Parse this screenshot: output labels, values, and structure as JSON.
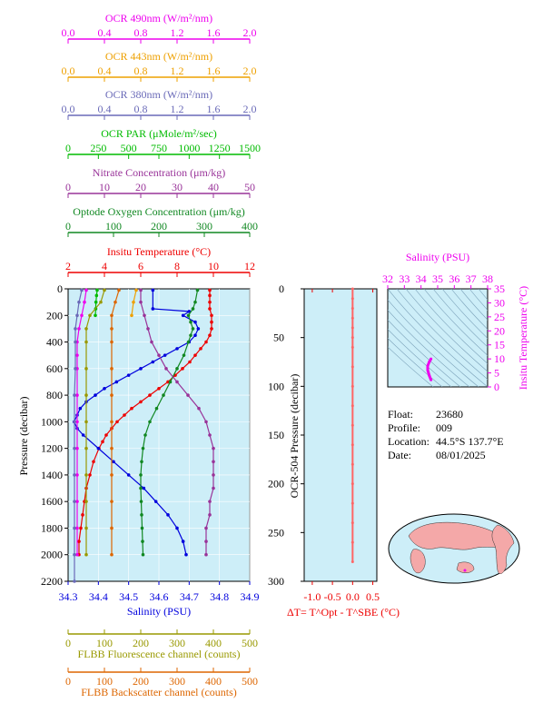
{
  "colors": {
    "ocr490": "#ee00ee",
    "ocr443": "#eea000",
    "ocr380": "#6a6ab8",
    "par": "#00bb00",
    "nitrate": "#993399",
    "oxygen": "#118822",
    "temperature": "#ee0000",
    "salinity": "#0000dd",
    "fluorescence": "#999900",
    "backscatter": "#dd6600",
    "ocr504": "#ff6666",
    "panel_bg": "#cdeef8",
    "map_land": "#f4a8a8"
  },
  "top_axes": [
    {
      "key": "ocr490",
      "label": "OCR 490nm (W/m²/nm)",
      "ticks": [
        "0.0",
        "0.4",
        "0.8",
        "1.2",
        "1.6",
        "2.0"
      ]
    },
    {
      "key": "ocr443",
      "label": "OCR 443nm (W/m²/nm)",
      "ticks": [
        "0.0",
        "0.4",
        "0.8",
        "1.2",
        "1.6",
        "2.0"
      ]
    },
    {
      "key": "ocr380",
      "label": "OCR 380nm (W/m²/nm)",
      "ticks": [
        "0.0",
        "0.4",
        "0.8",
        "1.2",
        "1.6",
        "2.0"
      ]
    },
    {
      "key": "par",
      "label": "OCR PAR (μMole/m²/sec)",
      "ticks": [
        "0",
        "250",
        "500",
        "750",
        "1000",
        "1250",
        "1500"
      ]
    },
    {
      "key": "nitrate",
      "label": "Nitrate Concentration (μm/kg)",
      "ticks": [
        "0",
        "10",
        "20",
        "30",
        "40",
        "50"
      ]
    },
    {
      "key": "oxygen",
      "label": "Optode Oxygen Concentration (μm/kg)",
      "ticks": [
        "0",
        "100",
        "200",
        "300",
        "400"
      ]
    },
    {
      "key": "temperature",
      "label": "Insitu Temperature (°C)",
      "ticks": [
        "2",
        "4",
        "6",
        "8",
        "10",
        "12"
      ]
    }
  ],
  "bottom_axes": [
    {
      "key": "salinity",
      "label": "Salinity (PSU)",
      "ticks": [
        "34.3",
        "34.4",
        "34.5",
        "34.6",
        "34.7",
        "34.8",
        "34.9"
      ]
    },
    {
      "key": "fluorescence",
      "label": "FLBB Fluorescence channel (counts)",
      "ticks": [
        "0",
        "100",
        "200",
        "300",
        "400",
        "500"
      ]
    },
    {
      "key": "backscatter",
      "label": "FLBB Backscatter channel (counts)",
      "ticks": [
        "0",
        "100",
        "200",
        "300",
        "400",
        "500"
      ]
    }
  ],
  "main_left_label": "Pressure (decibar)",
  "main_left_ticks": [
    "0",
    "200",
    "400",
    "600",
    "800",
    "1000",
    "1200",
    "1400",
    "1600",
    "1800",
    "2000",
    "2200"
  ],
  "mid_left_label": "OCR-504 Pressure (decibar)",
  "mid_left_ticks": [
    "0",
    "50",
    "100",
    "150",
    "200",
    "250",
    "300"
  ],
  "mid_bottom_ticks": [
    "-1.0",
    "-0.5",
    "0.0",
    "0.5"
  ],
  "mid_bottom_label": "ΔT= T^Opt - T^SBE (°C)",
  "ts_top_label": "Salinity (PSU)",
  "ts_top_ticks": [
    "32",
    "33",
    "34",
    "35",
    "36",
    "37",
    "38"
  ],
  "ts_right_label": "Insitu Temperature (°C)",
  "ts_right_ticks": [
    "0",
    "5",
    "10",
    "15",
    "20",
    "25",
    "30",
    "35"
  ],
  "info": {
    "float_label": "Float:",
    "float_value": "23680",
    "profile_label": "Profile:",
    "profile_value": "009",
    "location_label": "Location:",
    "location_value": "44.5°S  137.7°E",
    "date_label": "Date:",
    "date_value": "08/01/2025"
  },
  "chart_data": {
    "type": "line",
    "pressure_range": [
      0,
      2200
    ],
    "series": [
      {
        "key": "temperature",
        "xlim": [
          2,
          12
        ],
        "p": [
          10,
          50,
          100,
          150,
          200,
          250,
          300,
          350,
          400,
          450,
          500,
          550,
          600,
          650,
          700,
          750,
          800,
          850,
          900,
          950,
          1000,
          1050,
          1100,
          1150,
          1200,
          1300,
          1400,
          1500,
          1600,
          1700,
          1800,
          1900,
          2000
        ],
        "x": [
          9.8,
          9.8,
          9.8,
          9.8,
          9.9,
          9.9,
          9.9,
          9.8,
          9.6,
          9.3,
          9.0,
          8.7,
          8.3,
          7.9,
          7.5,
          7.0,
          6.5,
          6.0,
          5.5,
          5.1,
          4.7,
          4.4,
          4.1,
          3.9,
          3.7,
          3.4,
          3.2,
          3.0,
          2.9,
          2.8,
          2.7,
          2.6,
          2.6
        ]
      },
      {
        "key": "salinity",
        "xlim": [
          34.3,
          34.9
        ],
        "p": [
          10,
          150,
          170,
          200,
          250,
          300,
          350,
          400,
          450,
          500,
          550,
          600,
          650,
          700,
          750,
          800,
          850,
          900,
          950,
          1000,
          1050,
          1100,
          1200,
          1300,
          1400,
          1500,
          1600,
          1700,
          1800,
          1900,
          2000
        ],
        "x": [
          34.58,
          34.58,
          34.7,
          34.68,
          34.72,
          34.73,
          34.72,
          34.7,
          34.66,
          34.62,
          34.58,
          34.54,
          34.5,
          34.46,
          34.42,
          34.39,
          34.36,
          34.34,
          34.33,
          34.32,
          34.33,
          34.35,
          34.4,
          34.45,
          34.5,
          34.55,
          34.59,
          34.63,
          34.66,
          34.68,
          34.69
        ]
      },
      {
        "key": "oxygen",
        "xlim": [
          0,
          400
        ],
        "p": [
          10,
          100,
          150,
          200,
          250,
          300,
          350,
          400,
          500,
          600,
          700,
          800,
          900,
          1000,
          1100,
          1200,
          1300,
          1400,
          1500,
          1600,
          1700,
          1800,
          1900,
          2000
        ],
        "x": [
          285,
          280,
          275,
          265,
          270,
          275,
          270,
          265,
          255,
          240,
          225,
          210,
          195,
          180,
          170,
          165,
          162,
          160,
          160,
          161,
          162,
          163,
          164,
          165
        ]
      },
      {
        "key": "nitrate",
        "xlim": [
          0,
          50
        ],
        "p": [
          10,
          100,
          200,
          300,
          400,
          500,
          600,
          700,
          800,
          900,
          1000,
          1100,
          1200,
          1300,
          1400,
          1500,
          1600,
          1700,
          1800,
          1900,
          2000
        ],
        "x": [
          20,
          20,
          21,
          22,
          23,
          25,
          27,
          30,
          33,
          36,
          38,
          39,
          40,
          40,
          40,
          40,
          39,
          39,
          38,
          38,
          38
        ]
      },
      {
        "key": "par",
        "xlim": [
          0,
          1500
        ],
        "p": [
          10,
          50,
          100,
          150,
          200
        ],
        "x": [
          240,
          235,
          230,
          228,
          225
        ]
      },
      {
        "key": "ocr490",
        "xlim": [
          0,
          2
        ],
        "p": [
          10,
          100,
          200,
          300,
          400,
          500,
          600,
          800,
          1000,
          1200,
          1400,
          1600,
          1800,
          2000
        ],
        "x": [
          0.2,
          0.18,
          0.15,
          0.12,
          0.1,
          0.1,
          0.1,
          0.1,
          0.1,
          0.1,
          0.1,
          0.1,
          0.1,
          0.1
        ]
      },
      {
        "key": "ocr443",
        "xlim": [
          0,
          2
        ],
        "p": [
          10,
          100,
          200
        ],
        "x": [
          0.75,
          0.72,
          0.7
        ]
      },
      {
        "key": "ocr380",
        "xlim": [
          0,
          2
        ],
        "p": [
          10,
          100,
          200,
          300,
          400,
          600,
          800,
          1000,
          1200,
          1400,
          1600,
          1800,
          2000,
          2200
        ],
        "x": [
          0.15,
          0.12,
          0.1,
          0.08,
          0.08,
          0.08,
          0.07,
          0.07,
          0.07,
          0.07,
          0.07,
          0.07,
          0.07,
          0.07
        ]
      },
      {
        "key": "fluorescence",
        "xlim": [
          0,
          500
        ],
        "p": [
          10,
          100,
          200,
          300,
          400,
          600,
          800,
          1000,
          1200,
          1400,
          1600,
          1800,
          2000
        ],
        "x": [
          100,
          90,
          60,
          50,
          50,
          50,
          50,
          50,
          50,
          50,
          50,
          50,
          50
        ]
      },
      {
        "key": "backscatter",
        "xlim": [
          0,
          500
        ],
        "p": [
          10,
          100,
          200,
          300,
          400,
          600,
          800,
          1000,
          1200,
          1400,
          1600,
          1800,
          2000
        ],
        "x": [
          140,
          130,
          120,
          120,
          120,
          120,
          120,
          120,
          120,
          120,
          120,
          120,
          120
        ]
      }
    ],
    "delta_t": {
      "xlim": [
        -1.2,
        0.6
      ],
      "plim": [
        0,
        300
      ],
      "p": [
        0,
        10,
        20,
        30,
        40,
        50,
        60,
        80,
        100,
        120,
        140,
        160,
        180,
        200,
        220,
        240,
        260,
        280
      ],
      "x": [
        0.0,
        0.0,
        0.0,
        0.0,
        0.0,
        0.0,
        0.0,
        0.0,
        0.0,
        0.0,
        0.0,
        0.0,
        0.0,
        0.0,
        0.0,
        0.0,
        0.0,
        0.0
      ]
    },
    "ts": {
      "xlim": [
        32,
        38
      ],
      "ylim": [
        0,
        35
      ],
      "s": [
        34.6,
        34.5,
        34.4,
        34.4,
        34.5,
        34.6
      ],
      "t": [
        2.5,
        4,
        6,
        7.5,
        9,
        10
      ]
    }
  }
}
